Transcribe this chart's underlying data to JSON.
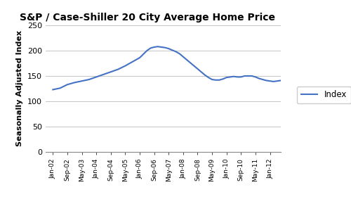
{
  "title": "S&P / Case-Shiller 20 City Average Home Price",
  "ylabel": "Seasonally Adjusted Index",
  "legend_label": "Index",
  "line_color": "#4472C4",
  "background_color": "#FFFFFF",
  "ylim": [
    0,
    250
  ],
  "yticks": [
    0,
    50,
    100,
    150,
    200,
    250
  ],
  "x_labels": [
    "Jan-02",
    "Sep-02",
    "May-03",
    "Jan-04",
    "Sep-04",
    "May-05",
    "Jan-06",
    "Sep-06",
    "May-07",
    "Jan-08",
    "Sep-08",
    "May-09",
    "Jan-10",
    "Sep-10",
    "May-11",
    "Jan-12"
  ],
  "x_positions": [
    0,
    1,
    2,
    3,
    4,
    5,
    6,
    7,
    8,
    9,
    10,
    11,
    12,
    13,
    14,
    15
  ],
  "data": [
    [
      0,
      123
    ],
    [
      0.5,
      126
    ],
    [
      1,
      133
    ],
    [
      1.5,
      137
    ],
    [
      2,
      140
    ],
    [
      2.5,
      143
    ],
    [
      3,
      148
    ],
    [
      3.5,
      153
    ],
    [
      4,
      158
    ],
    [
      4.5,
      163
    ],
    [
      5,
      170
    ],
    [
      5.5,
      178
    ],
    [
      6,
      186
    ],
    [
      6.25,
      193
    ],
    [
      6.5,
      200
    ],
    [
      6.75,
      205
    ],
    [
      7,
      207
    ],
    [
      7.25,
      208
    ],
    [
      7.5,
      207
    ],
    [
      7.75,
      206
    ],
    [
      8,
      204
    ],
    [
      8.25,
      201
    ],
    [
      8.5,
      198
    ],
    [
      8.75,
      194
    ],
    [
      9,
      188
    ],
    [
      9.25,
      182
    ],
    [
      9.5,
      176
    ],
    [
      9.75,
      170
    ],
    [
      10,
      164
    ],
    [
      10.25,
      158
    ],
    [
      10.5,
      152
    ],
    [
      10.75,
      147
    ],
    [
      11,
      143
    ],
    [
      11.25,
      142
    ],
    [
      11.5,
      142
    ],
    [
      11.75,
      144
    ],
    [
      12,
      147
    ],
    [
      12.25,
      148
    ],
    [
      12.5,
      149
    ],
    [
      12.75,
      148
    ],
    [
      13,
      148
    ],
    [
      13.25,
      150
    ],
    [
      13.5,
      150
    ],
    [
      13.75,
      150
    ],
    [
      14,
      148
    ],
    [
      14.25,
      145
    ],
    [
      14.5,
      143
    ],
    [
      14.75,
      141
    ],
    [
      15,
      140
    ],
    [
      15.25,
      139
    ],
    [
      15.5,
      140
    ],
    [
      15.75,
      141
    ],
    [
      16,
      142
    ]
  ]
}
